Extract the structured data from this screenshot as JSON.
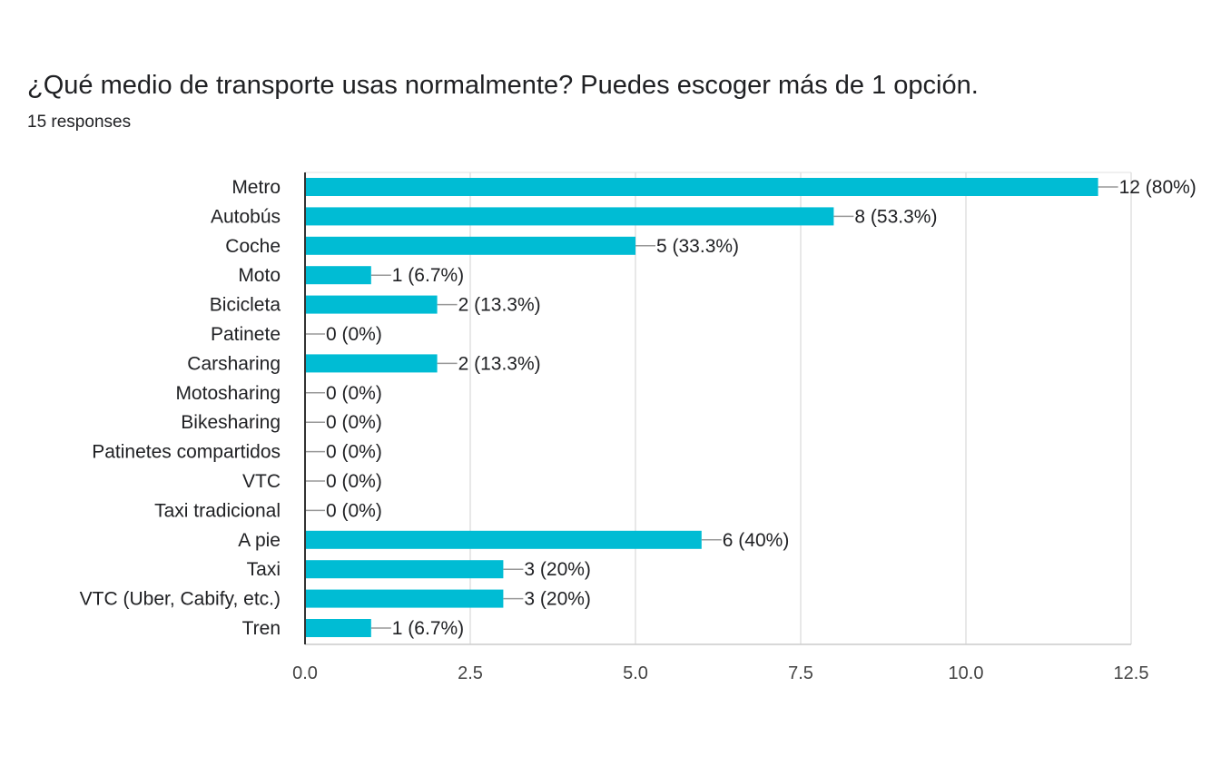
{
  "header": {
    "title": "¿Qué medio de transporte usas normalmente? Puedes escoger más de 1 opción.",
    "responses": "15 responses"
  },
  "colors": {
    "bar": "#00bcd4",
    "grid": "#e0e0e0",
    "axis": "#333333",
    "text": "#202124",
    "leader": "#999999"
  },
  "chart_data": {
    "type": "bar",
    "orientation": "horizontal",
    "categories": [
      "Metro",
      "Autobús",
      "Coche",
      "Moto",
      "Bicicleta",
      "Patinete",
      "Carsharing",
      "Motosharing",
      "Bikesharing",
      "Patinetes compartidos",
      "VTC",
      "Taxi tradicional",
      "A pie",
      "Taxi",
      "VTC (Uber, Cabify, etc.)",
      "Tren"
    ],
    "values": [
      12,
      8,
      5,
      1,
      2,
      0,
      2,
      0,
      0,
      0,
      0,
      0,
      6,
      3,
      3,
      1
    ],
    "data_labels": [
      "12 (80%)",
      "8 (53.3%)",
      "5 (33.3%)",
      "1 (6.7%)",
      "2 (13.3%)",
      "0 (0%)",
      "2 (13.3%)",
      "0 (0%)",
      "0 (0%)",
      "0 (0%)",
      "0 (0%)",
      "0 (0%)",
      "6 (40%)",
      "3 (20%)",
      "3 (20%)",
      "1 (6.7%)"
    ],
    "xlim": [
      0,
      12.5
    ],
    "xticks": [
      "0.0",
      "2.5",
      "5.0",
      "7.5",
      "10.0",
      "12.5"
    ],
    "grid": true,
    "legend": "none"
  }
}
